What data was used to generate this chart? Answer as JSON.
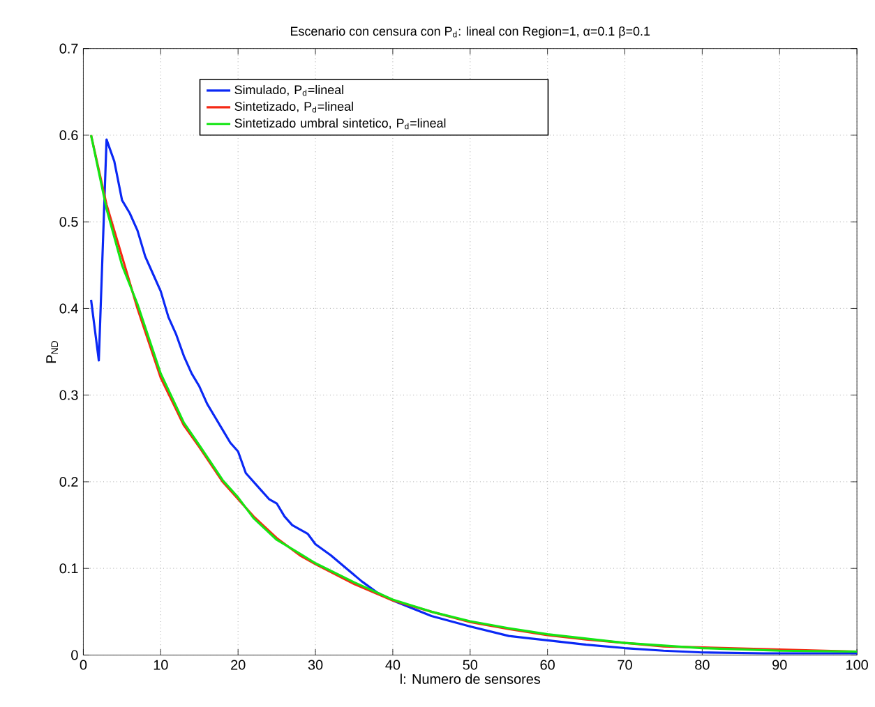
{
  "chart_data": {
    "type": "line",
    "title": "Escenario con censura con P$_{d}$: lineal con Region=1, α=0.1 β=0.1",
    "xlabel": "l: Numero de sensores",
    "ylabel": "P$_{ND}$",
    "xlim": [
      0,
      100
    ],
    "ylim": [
      0,
      0.7
    ],
    "xticks": [
      0,
      10,
      20,
      30,
      40,
      50,
      60,
      70,
      80,
      90,
      100
    ],
    "yticks": [
      0,
      0.1,
      0.2,
      0.3,
      0.4,
      0.5,
      0.6,
      0.7
    ],
    "grid": true,
    "legend": "top left",
    "marker": "none",
    "line_style": "solid",
    "series": [
      {
        "name": "Simulado, P$_{d}$=lineal",
        "color": "#0a28f5",
        "x": [
          1,
          2,
          3,
          4,
          5,
          6,
          7,
          8,
          9,
          10,
          11,
          12,
          13,
          14,
          15,
          16,
          17,
          18,
          19,
          20,
          21,
          22,
          23,
          24,
          25,
          26,
          27,
          28,
          29,
          30,
          32,
          34,
          36,
          38,
          40,
          45,
          50,
          55,
          60,
          65,
          70,
          75,
          80,
          88,
          100
        ],
        "values": [
          0.41,
          0.34,
          0.595,
          0.57,
          0.525,
          0.51,
          0.49,
          0.46,
          0.44,
          0.42,
          0.39,
          0.37,
          0.345,
          0.325,
          0.31,
          0.29,
          0.275,
          0.26,
          0.245,
          0.235,
          0.21,
          0.2,
          0.19,
          0.18,
          0.175,
          0.16,
          0.15,
          0.145,
          0.14,
          0.128,
          0.115,
          0.1,
          0.085,
          0.072,
          0.063,
          0.045,
          0.033,
          0.022,
          0.017,
          0.012,
          0.008,
          0.005,
          0.003,
          0.002,
          0.002
        ]
      },
      {
        "name": "Sintetizado, P$_{d}$=lineal",
        "color": "#f52814",
        "x": [
          1,
          3,
          5,
          7,
          10,
          13,
          15,
          18,
          20,
          22,
          25,
          28,
          30,
          35,
          40,
          45,
          50,
          55,
          60,
          65,
          70,
          75,
          80,
          90,
          100
        ],
        "values": [
          0.6,
          0.52,
          null,
          0.4,
          0.32,
          0.265,
          0.24,
          0.2,
          0.18,
          0.16,
          0.135,
          0.115,
          0.105,
          0.082,
          0.063,
          0.05,
          0.038,
          0.03,
          0.023,
          0.018,
          null,
          0.01,
          null,
          null,
          0.004
        ]
      },
      {
        "name": "Sintetizado umbral sintetico, P$_{d}$=lineal",
        "color": "#14e614",
        "x": [
          1,
          3,
          5,
          7,
          10,
          13,
          15,
          18,
          20,
          22,
          25,
          28,
          30,
          35,
          40,
          45,
          50,
          55,
          60,
          65,
          70,
          75,
          80,
          90,
          100
        ],
        "values": [
          0.6,
          0.515,
          0.45,
          0.405,
          0.325,
          0.268,
          0.242,
          0.202,
          0.182,
          0.158,
          0.133,
          0.117,
          0.106,
          0.084,
          0.064,
          0.05,
          0.039,
          0.031,
          0.024,
          0.019,
          0.014,
          0.011,
          0.008,
          0.005,
          0.004
        ]
      }
    ]
  }
}
